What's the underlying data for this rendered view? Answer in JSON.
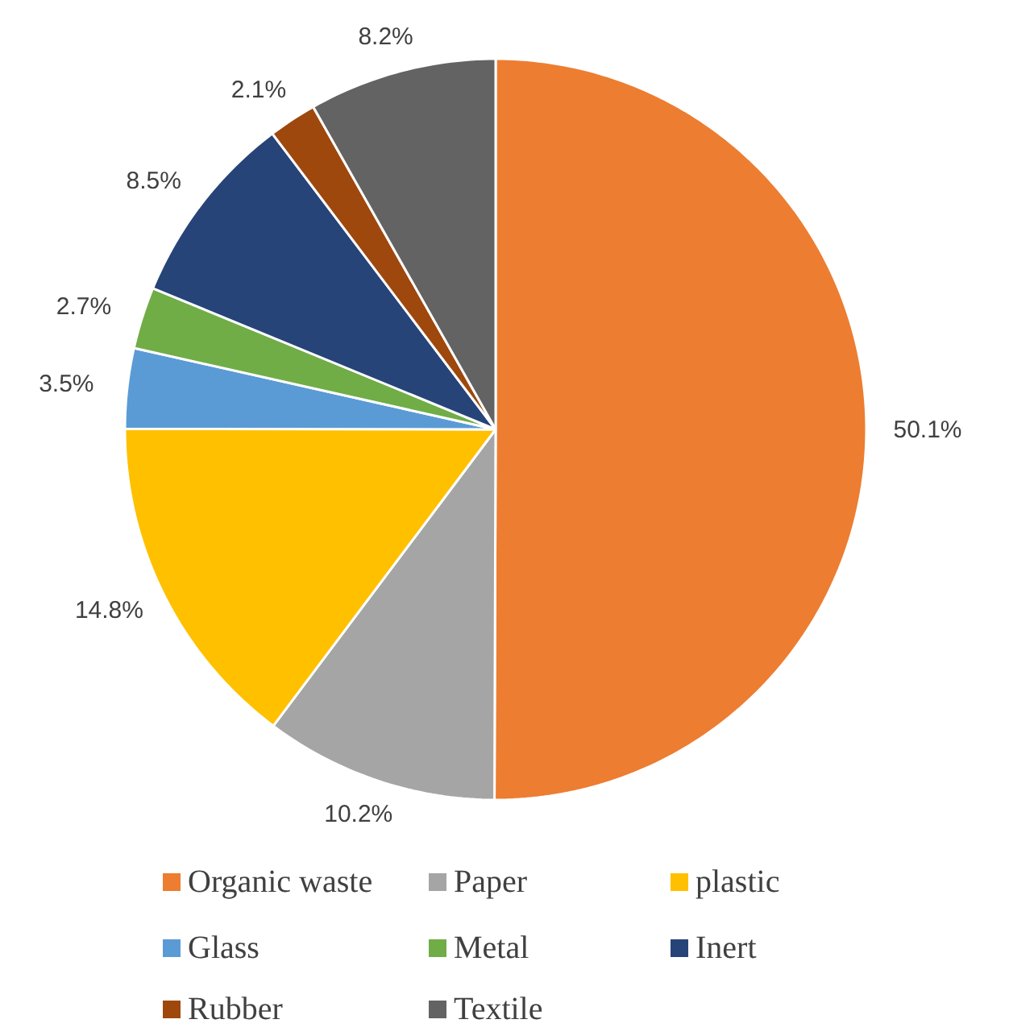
{
  "chart_data": {
    "type": "pie",
    "categories": [
      "Organic waste",
      "Paper",
      "plastic",
      "Glass",
      "Metal",
      "Inert",
      "Rubber",
      "Textile"
    ],
    "values": [
      50.1,
      10.2,
      14.8,
      3.5,
      2.7,
      8.5,
      2.1,
      8.2
    ],
    "colors": [
      "#ed7d31",
      "#a5a5a5",
      "#ffc000",
      "#5b9bd5",
      "#70ad47",
      "#264478",
      "#9e480e",
      "#636363"
    ],
    "value_labels": [
      "50.1%",
      "10.2%",
      "14.8%",
      "3.5%",
      "2.7%",
      "8.5%",
      "2.1%",
      "8.2%"
    ],
    "legend": "bottom"
  }
}
